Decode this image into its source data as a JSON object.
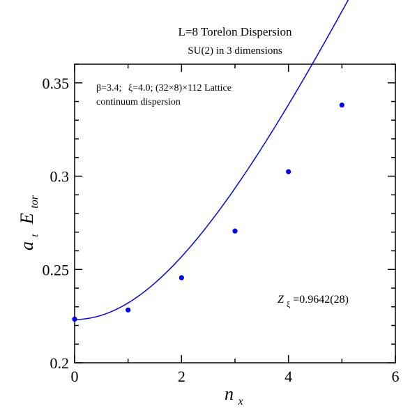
{
  "chart_data": {
    "type": "scatter",
    "title": "L=8 Torelon Dispersion",
    "subtitle": "SU(2) in 3 dimensions",
    "xlabel": {
      "main": "n",
      "sub": "x"
    },
    "ylabel": {
      "pre": "a",
      "pre_sub": "t",
      "main": "E",
      "sub": "tor"
    },
    "xlim": [
      0,
      6
    ],
    "ylim": [
      0.2,
      0.36
    ],
    "x_ticks": [
      0,
      2,
      4,
      6
    ],
    "x_tick_labels": [
      "0",
      "2",
      "4",
      "6"
    ],
    "y_ticks": [
      0.2,
      0.25,
      0.3,
      0.35
    ],
    "y_tick_labels": [
      "0.2",
      "0.25",
      "0.3",
      "0.35"
    ],
    "x_minor_step": 1,
    "y_minor_step": 0.01,
    "grid": false,
    "color": "#0000ff",
    "series": [
      {
        "marker": "circle",
        "x": [
          0,
          1,
          2,
          3,
          4,
          5
        ],
        "y": [
          0.2234,
          0.2283,
          0.2456,
          0.2706,
          0.3024,
          0.3381
        ]
      }
    ],
    "fit_curve": {
      "label": "continuum dispersion",
      "mass": 0.2232,
      "k_per_n": 0.06356,
      "x_range": [
        0,
        5.5
      ]
    },
    "annotations": {
      "params_beta": "β=3.4;",
      "params_xi": "ξ=4.0;",
      "params_lattice": "(32×8)×112 Lattice",
      "params_line2": "continuum dispersion",
      "zxi_main": "Z",
      "zxi_sub": "ξ",
      "zxi_value": "=0.9642(28)"
    }
  }
}
